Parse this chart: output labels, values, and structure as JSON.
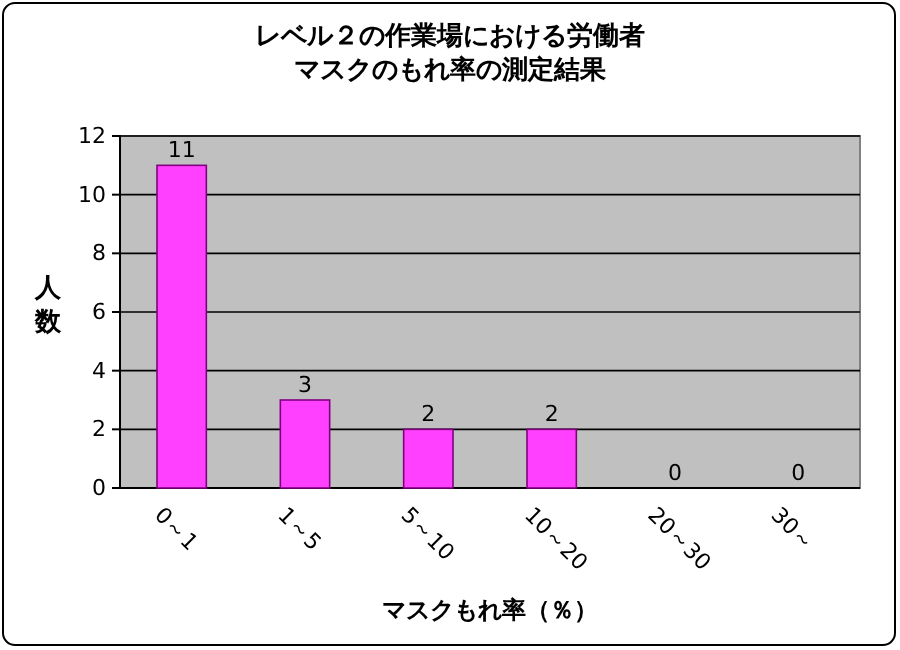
{
  "chart_data": {
    "type": "bar",
    "title": "レベル２の作業場における労働者マスクのもれ率の測定結果",
    "xlabel": "マスクもれ率（％）",
    "ylabel": "人数",
    "categories": [
      "0～1",
      "1～5",
      "5～10",
      "10～20",
      "20～30",
      "30～"
    ],
    "values": [
      11,
      3,
      2,
      2,
      0,
      0
    ],
    "color": "#ff40ff",
    "ylim": [
      0,
      12
    ],
    "yticks": [
      0,
      2,
      4,
      6,
      8,
      10,
      12
    ],
    "grid": "y",
    "data_labels": true
  }
}
